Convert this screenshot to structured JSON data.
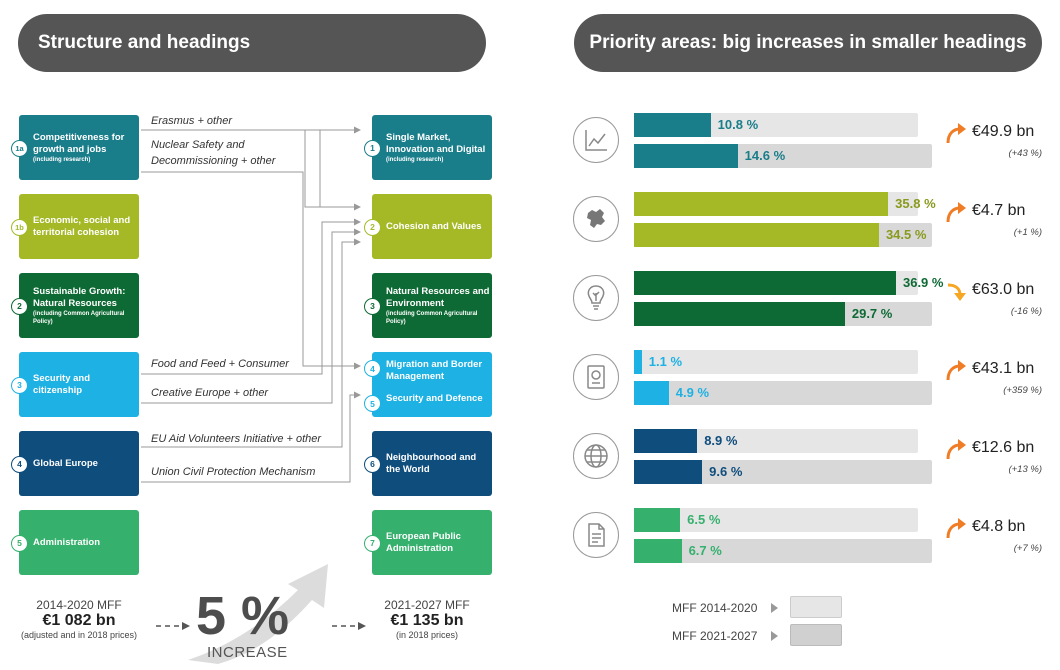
{
  "left_title": "Structure and headings",
  "right_title": "Priority areas: big increases in smaller headings",
  "left_boxes": [
    {
      "num": "1a",
      "title": "Competitiveness for growth and jobs",
      "sub": "(including research)"
    },
    {
      "num": "1b",
      "title": "Economic, social and territorial cohesion",
      "sub": ""
    },
    {
      "num": "2",
      "title": "Sustainable Growth: Natural Resources",
      "sub": "(including Common Agricultural Policy)"
    },
    {
      "num": "3",
      "title": "Security and citizenship",
      "sub": ""
    },
    {
      "num": "4",
      "title": "Global Europe",
      "sub": ""
    },
    {
      "num": "5",
      "title": "Administration",
      "sub": ""
    }
  ],
  "right_boxes": [
    {
      "num": "1",
      "title": "Single Market, Innovation and Digital",
      "sub": "(including research)"
    },
    {
      "num": "2",
      "title": "Cohesion and Values",
      "sub": ""
    },
    {
      "num": "3",
      "title": "Natural Resources and Environment",
      "sub": "(including Common Agricultural Policy)"
    },
    {
      "num": "4",
      "title": "Migration and Border Management",
      "sub": "",
      "num2": "5",
      "title2": "Security and Defence"
    },
    {
      "num": "6",
      "title": "Neighbourhood and the World",
      "sub": ""
    },
    {
      "num": "7",
      "title": "European Public Administration",
      "sub": ""
    }
  ],
  "flows": [
    "Erasmus + other",
    "Nuclear Safety and",
    "Decommissioning + other",
    "Food and Feed + Consumer",
    "Creative Europe + other",
    "EU Aid Volunteers Initiative + other",
    "Union Civil Protection Mechanism"
  ],
  "bottom": {
    "old_label": "2014-2020 MFF",
    "old_value": "€1 082 bn",
    "old_note": "(adjusted and in 2018 prices)",
    "increase_value": "5 %",
    "increase_label": "INCREASE",
    "new_label": "2021-2027 MFF",
    "new_value": "€1 135 bn",
    "new_note": "(in 2018 prices)"
  },
  "chart_data": {
    "type": "bar",
    "categories": [
      "Single Market, Innovation and Digital",
      "Cohesion and Values",
      "Natural Resources and Environment",
      "Migration, Border Management, Security and Defence",
      "Neighbourhood and the World",
      "European Public Administration"
    ],
    "series": [
      {
        "name": "MFF 2014-2020",
        "values": [
          10.8,
          35.8,
          36.9,
          1.1,
          8.9,
          6.5
        ]
      },
      {
        "name": "MFF 2021-2027",
        "values": [
          14.6,
          34.5,
          29.7,
          4.9,
          9.6,
          6.7
        ]
      }
    ],
    "value_labels_2014": [
      "10.8 %",
      "35.8 %",
      "36.9 %",
      "1.1 %",
      "8.9 %",
      "6.5 %"
    ],
    "value_labels_2021": [
      "14.6 %",
      "34.5 %",
      "29.7 %",
      "4.9 %",
      "9.6 %",
      "6.7 %"
    ],
    "changes": [
      "€49.9 bn",
      "€4.7 bn",
      "€63.0 bn",
      "€43.1 bn",
      "€12.6 bn",
      "€4.8 bn"
    ],
    "change_pcts": [
      "(+43 %)",
      "(+1 %)",
      "(-16 %)",
      "(+359 %)",
      "(+13 %)",
      "(+7 %)"
    ],
    "direction": [
      "up",
      "up",
      "down",
      "up",
      "up",
      "up"
    ],
    "icons": [
      "chart-icon",
      "eu-map-icon",
      "lightbulb-plant-icon",
      "passport-icon",
      "globe-icon",
      "document-icon"
    ],
    "colors": [
      "#1a7d8a",
      "#a5b927",
      "#0e6a35",
      "#1eb1e3",
      "#0f4d7d",
      "#35b06d"
    ],
    "xlim": [
      0,
      40
    ],
    "legend": [
      "MFF 2014-2020",
      "MFF 2021-2027"
    ],
    "legend_position": "bottom"
  }
}
